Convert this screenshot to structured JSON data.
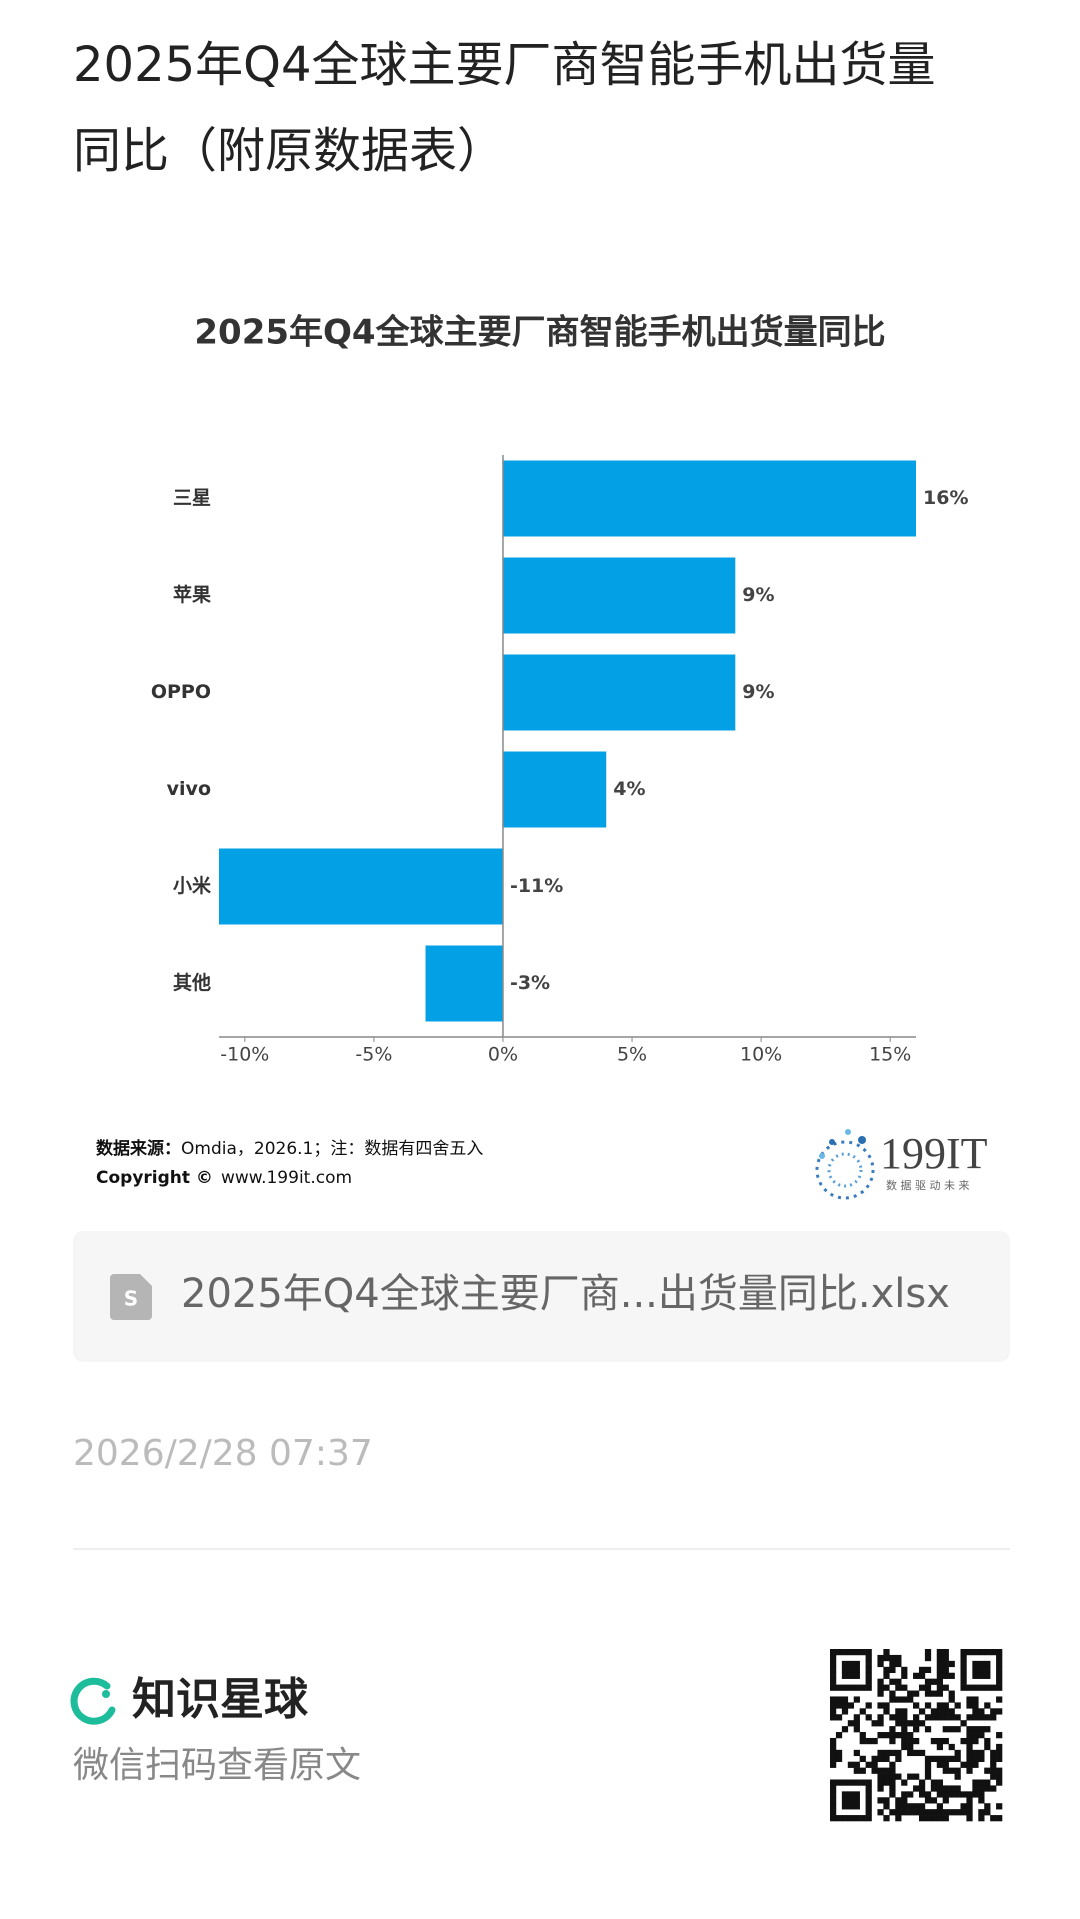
{
  "header": {
    "title_lines": [
      "2025年Q4全球主要厂商智能手机出货量",
      "同比（附原数据表）"
    ]
  },
  "chart_data": {
    "type": "hbar",
    "title": "2025年Q4全球主要厂商智能手机出货量同比",
    "categories": [
      "三星",
      "苹果",
      "OPPO",
      "vivo",
      "小米",
      "其他"
    ],
    "values": [
      16,
      9,
      9,
      4,
      -11,
      -3
    ],
    "value_labels": [
      "16%",
      "9%",
      "9%",
      "4%",
      "-11%",
      "-3%"
    ],
    "color": "#03a0e6",
    "xlim": [
      -11,
      16
    ],
    "xticks": [
      {
        "value": -10,
        "label": "-10%"
      },
      {
        "value": -5,
        "label": "-5%"
      },
      {
        "value": 0,
        "label": "0%"
      },
      {
        "value": 5,
        "label": "5%"
      },
      {
        "value": 10,
        "label": "10%"
      },
      {
        "value": 15,
        "label": "15%"
      }
    ]
  },
  "source": {
    "label": "数据来源：",
    "text": "Omdia，2026.1；注：数据有四舍五入",
    "copyright": "Copyright ©",
    "site": "www.199it.com"
  },
  "logo": {
    "name": "199IT",
    "slogan": "数 据 驱 动 未 来"
  },
  "attachment": {
    "filename": "2025年Q4全球主要厂商...出货量同比.xlsx"
  },
  "date": "2026/2/28 07:37",
  "footer": {
    "brand": "知识星球",
    "hint": "微信扫码查看原文"
  }
}
